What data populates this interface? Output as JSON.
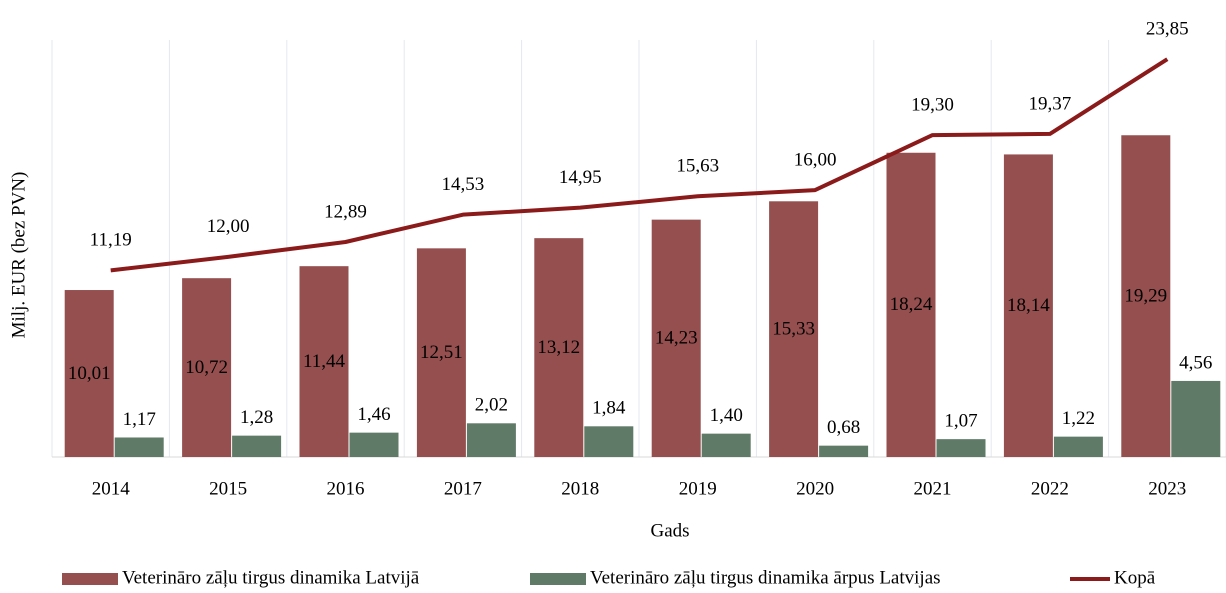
{
  "chart_data": {
    "type": "bar_line",
    "x_label": "Gads",
    "y_label": "Milj. EUR  (bez PVN)",
    "categories": [
      "2014",
      "2015",
      "2016",
      "2017",
      "2018",
      "2019",
      "2020",
      "2021",
      "2022",
      "2023"
    ],
    "ylim": [
      0,
      25
    ],
    "series": [
      {
        "name": "Veterināro zāļu tirgus dinamika Latvijā",
        "color": "#954f4f",
        "kind": "bar",
        "values": [
          10.01,
          10.72,
          11.44,
          12.51,
          13.12,
          14.23,
          15.33,
          18.24,
          18.14,
          19.29
        ],
        "value_labels": [
          "10,01",
          "10,72",
          "11,44",
          "12,51",
          "13,12",
          "14,23",
          "15,33",
          "18,24",
          "18,14",
          "19,29"
        ]
      },
      {
        "name": "Veterināro zāļu tirgus dinamika ārpus Latvijas",
        "color": "#5f7a67",
        "kind": "bar",
        "values": [
          1.17,
          1.28,
          1.46,
          2.02,
          1.84,
          1.4,
          0.68,
          1.07,
          1.22,
          4.56
        ],
        "value_labels": [
          "1,17",
          "1,28",
          "1,46",
          "2,02",
          "1,84",
          "1,40",
          "0,68",
          "1,07",
          "1,22",
          "4,56"
        ]
      },
      {
        "name": "Kopā",
        "color": "#8b1a1a",
        "kind": "line",
        "values": [
          11.19,
          12.0,
          12.89,
          14.53,
          14.95,
          15.63,
          16.0,
          19.3,
          19.37,
          23.85
        ],
        "value_labels": [
          "11,19",
          "12,00",
          "12,89",
          "14,53",
          "14,95",
          "15,63",
          "16,00",
          "19,30",
          "19,37",
          "23,85"
        ]
      }
    ],
    "legend": "bottom"
  }
}
